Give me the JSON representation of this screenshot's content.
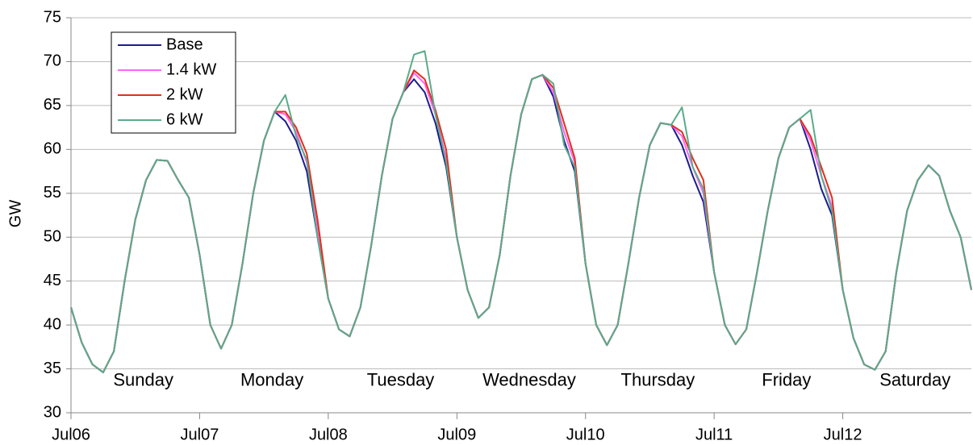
{
  "chart_data": {
    "type": "line",
    "ylabel": "GW",
    "x": [
      0,
      2,
      4,
      6,
      8,
      10,
      12,
      14,
      16,
      18,
      20,
      22,
      24,
      26,
      28,
      30,
      32,
      34,
      36,
      38,
      40,
      42,
      44,
      46,
      48,
      50,
      52,
      54,
      56,
      58,
      60,
      62,
      64,
      66,
      68,
      70,
      72,
      74,
      76,
      78,
      80,
      82,
      84,
      86,
      88,
      90,
      92,
      94,
      96,
      98,
      100,
      102,
      104,
      106,
      108,
      110,
      112,
      114,
      116,
      118,
      120,
      122,
      124,
      126,
      128,
      130,
      132,
      134,
      136,
      138,
      140,
      142,
      144,
      146,
      148,
      150,
      152,
      154,
      156,
      158,
      160,
      162,
      164,
      166,
      168
    ],
    "series": [
      {
        "name": "Base",
        "color": "#1c1c8e",
        "values": [
          42,
          38,
          35.5,
          34.6,
          37,
          45,
          52,
          56.5,
          58.8,
          58.7,
          56.5,
          54.5,
          48,
          40,
          37.3,
          40,
          47,
          55,
          61,
          64.3,
          63.2,
          61,
          57.5,
          50,
          43,
          39.5,
          38.7,
          42,
          49,
          57,
          63.5,
          66.5,
          68,
          66.5,
          63,
          58,
          50,
          44,
          40.8,
          42,
          48,
          57,
          64,
          68,
          68.5,
          66,
          61,
          57.5,
          47,
          40,
          37.7,
          40,
          47,
          54.5,
          60.5,
          63,
          62.8,
          60.5,
          57,
          54,
          46,
          40,
          37.8,
          39.5,
          46,
          53,
          59,
          62.5,
          63.5,
          60,
          55.5,
          52.5,
          44,
          38.5,
          35.5,
          34.9,
          37,
          46,
          53,
          56.5,
          58.2,
          57,
          53,
          50,
          44
        ]
      },
      {
        "name": "1.4 kW",
        "color": "#ff66ff",
        "values": [
          42,
          38,
          35.5,
          34.6,
          37,
          45,
          52,
          56.5,
          58.8,
          58.7,
          56.5,
          54.5,
          48,
          40,
          37.3,
          40,
          47,
          55,
          61,
          64.3,
          64,
          62,
          58.5,
          51,
          43,
          39.5,
          38.7,
          42,
          49,
          57,
          63.5,
          66.5,
          68.7,
          67.5,
          64,
          59,
          50,
          44,
          40.8,
          42,
          48,
          57,
          64,
          68,
          68.5,
          66.5,
          62,
          58.5,
          47,
          40,
          37.7,
          40,
          47,
          54.5,
          60.5,
          63,
          62.8,
          61.5,
          58,
          55,
          46,
          40,
          37.8,
          39.5,
          46,
          53,
          59,
          62.5,
          63.5,
          61,
          57,
          53.5,
          44,
          38.5,
          35.5,
          34.9,
          37,
          46,
          53,
          56.5,
          58.2,
          57,
          53,
          50,
          44
        ]
      },
      {
        "name": "2 kW",
        "color": "#e0301a",
        "values": [
          42,
          38,
          35.5,
          34.6,
          37,
          45,
          52,
          56.5,
          58.8,
          58.7,
          56.5,
          54.5,
          48,
          40,
          37.3,
          40,
          47,
          55,
          61,
          64.3,
          64.3,
          62.5,
          59.5,
          52,
          43,
          39.5,
          38.7,
          42,
          49,
          57,
          63.5,
          66.5,
          69,
          68,
          64.5,
          60,
          50,
          44,
          40.8,
          42,
          48,
          57,
          64,
          68,
          68.5,
          67,
          63,
          59,
          47,
          40,
          37.7,
          40,
          47,
          54.5,
          60.5,
          63,
          62.8,
          62,
          59,
          56.5,
          46,
          40,
          37.8,
          39.5,
          46,
          53,
          59,
          62.5,
          63.5,
          61.5,
          58,
          54.5,
          44,
          38.5,
          35.5,
          34.9,
          37,
          46,
          53,
          56.5,
          58.2,
          57,
          53,
          50,
          44
        ]
      },
      {
        "name": "6 kW",
        "color": "#5aab8a",
        "values": [
          42,
          38,
          35.5,
          34.6,
          37,
          45,
          52,
          56.5,
          58.8,
          58.7,
          56.5,
          54.5,
          48,
          40,
          37.3,
          40,
          47,
          55,
          61,
          64.3,
          66.2,
          61.5,
          58.8,
          50,
          43,
          39.5,
          38.7,
          42,
          49,
          57,
          63.5,
          66.5,
          70.8,
          71.2,
          64,
          58.5,
          50,
          44,
          40.8,
          42,
          48,
          57,
          64,
          68,
          68.5,
          67.5,
          60.5,
          58,
          47,
          40,
          37.7,
          40,
          47,
          54.5,
          60.5,
          63,
          62.8,
          64.8,
          58,
          55.5,
          46,
          40,
          37.8,
          39.5,
          46,
          53,
          59,
          62.5,
          63.5,
          64.5,
          57,
          53,
          44,
          38.5,
          35.5,
          34.9,
          37,
          46,
          53,
          56.5,
          58.2,
          57,
          53,
          50,
          44
        ]
      }
    ],
    "xlim": [
      0,
      168
    ],
    "xticks": [
      {
        "value": 0,
        "label": "Jul06"
      },
      {
        "value": 24,
        "label": "Jul07"
      },
      {
        "value": 48,
        "label": "Jul08"
      },
      {
        "value": 72,
        "label": "Jul09"
      },
      {
        "value": 96,
        "label": "Jul10"
      },
      {
        "value": 120,
        "label": "Jul11"
      },
      {
        "value": 144,
        "label": "Jul12"
      }
    ],
    "ylim": [
      30,
      75
    ],
    "yticks": [
      30,
      35,
      40,
      45,
      50,
      55,
      60,
      65,
      70,
      75
    ],
    "grid": true,
    "legend": "upper left",
    "annotations": [
      "Sunday",
      "Monday",
      "Tuesday",
      "Wednesday",
      "Thursday",
      "Friday",
      "Saturday"
    ]
  }
}
